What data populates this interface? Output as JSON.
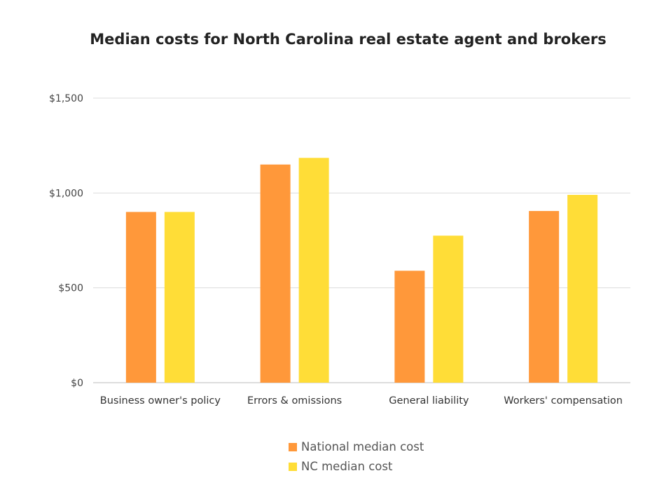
{
  "chart_data": {
    "type": "bar",
    "title": "Median costs for North Carolina real estate agent and brokers",
    "categories": [
      "Business owner's policy",
      "Errors & omissions",
      "General liability",
      "Workers' compensation"
    ],
    "series": [
      {
        "name": "National median cost",
        "color": "#FF983A",
        "values": [
          900,
          1150,
          590,
          905
        ]
      },
      {
        "name": "NC median cost",
        "color": "#FFDD37",
        "values": [
          900,
          1185,
          775,
          990
        ]
      }
    ],
    "yticks": [
      "$0",
      "$500",
      "$1,000",
      "$1,500"
    ],
    "ytick_values": [
      0,
      500,
      1000,
      1500
    ],
    "ylim": [
      0,
      1500
    ],
    "grid": true,
    "legend_position": "bottom"
  }
}
